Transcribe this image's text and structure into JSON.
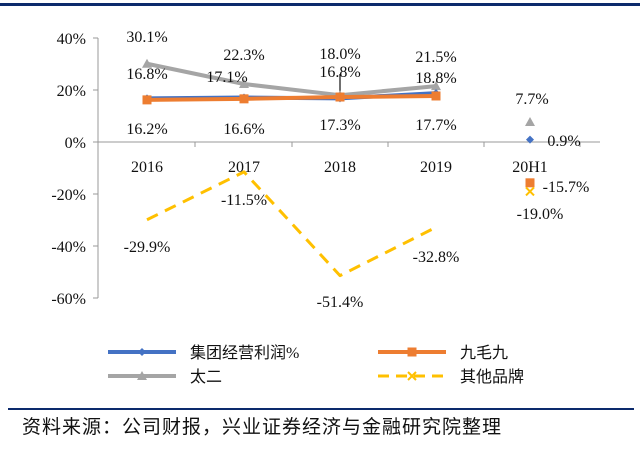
{
  "source_note": "资料来源：公司财报，兴业证券经济与金融研究院整理",
  "chart_data": {
    "type": "line",
    "categories": [
      "2016",
      "2017",
      "2018",
      "2019",
      "20H1"
    ],
    "ylim": [
      -60,
      40
    ],
    "yticks": [
      40,
      20,
      0,
      -20,
      -40,
      -60
    ],
    "ytick_labels": [
      "40%",
      "20%",
      "0%",
      "-20%",
      "-40%",
      "-60%"
    ],
    "grid": false,
    "legend_position": "bottom",
    "series": [
      {
        "name": "集团经营利润%",
        "color": "#4472c4",
        "marker": "diamond",
        "dash": "solid",
        "values": [
          16.8,
          17.1,
          16.8,
          18.8,
          0.9
        ],
        "labels": [
          "16.8%",
          "17.1%",
          "16.8%",
          "18.8%",
          "0.9%"
        ]
      },
      {
        "name": "九毛九",
        "color": "#ed7d31",
        "marker": "square",
        "dash": "solid",
        "values": [
          16.2,
          16.6,
          17.3,
          17.7,
          -15.7
        ],
        "labels": [
          "16.2%",
          "16.6%",
          "17.3%",
          "17.7%",
          "-15.7%"
        ]
      },
      {
        "name": "太二",
        "color": "#a5a5a5",
        "marker": "triangle",
        "dash": "solid",
        "values": [
          30.1,
          22.3,
          18.0,
          21.5,
          7.7
        ],
        "labels": [
          "30.1%",
          "22.3%",
          "18.0%",
          "21.5%",
          "7.7%"
        ]
      },
      {
        "name": "其他品牌",
        "color": "#ffc000",
        "marker": "x",
        "dash": "dashed",
        "values": [
          -29.9,
          -11.5,
          -51.4,
          -32.8,
          -19.0
        ],
        "labels": [
          "-29.9%",
          "-11.5%",
          "-51.4%",
          "-32.8%",
          "-19.0%"
        ]
      }
    ]
  }
}
